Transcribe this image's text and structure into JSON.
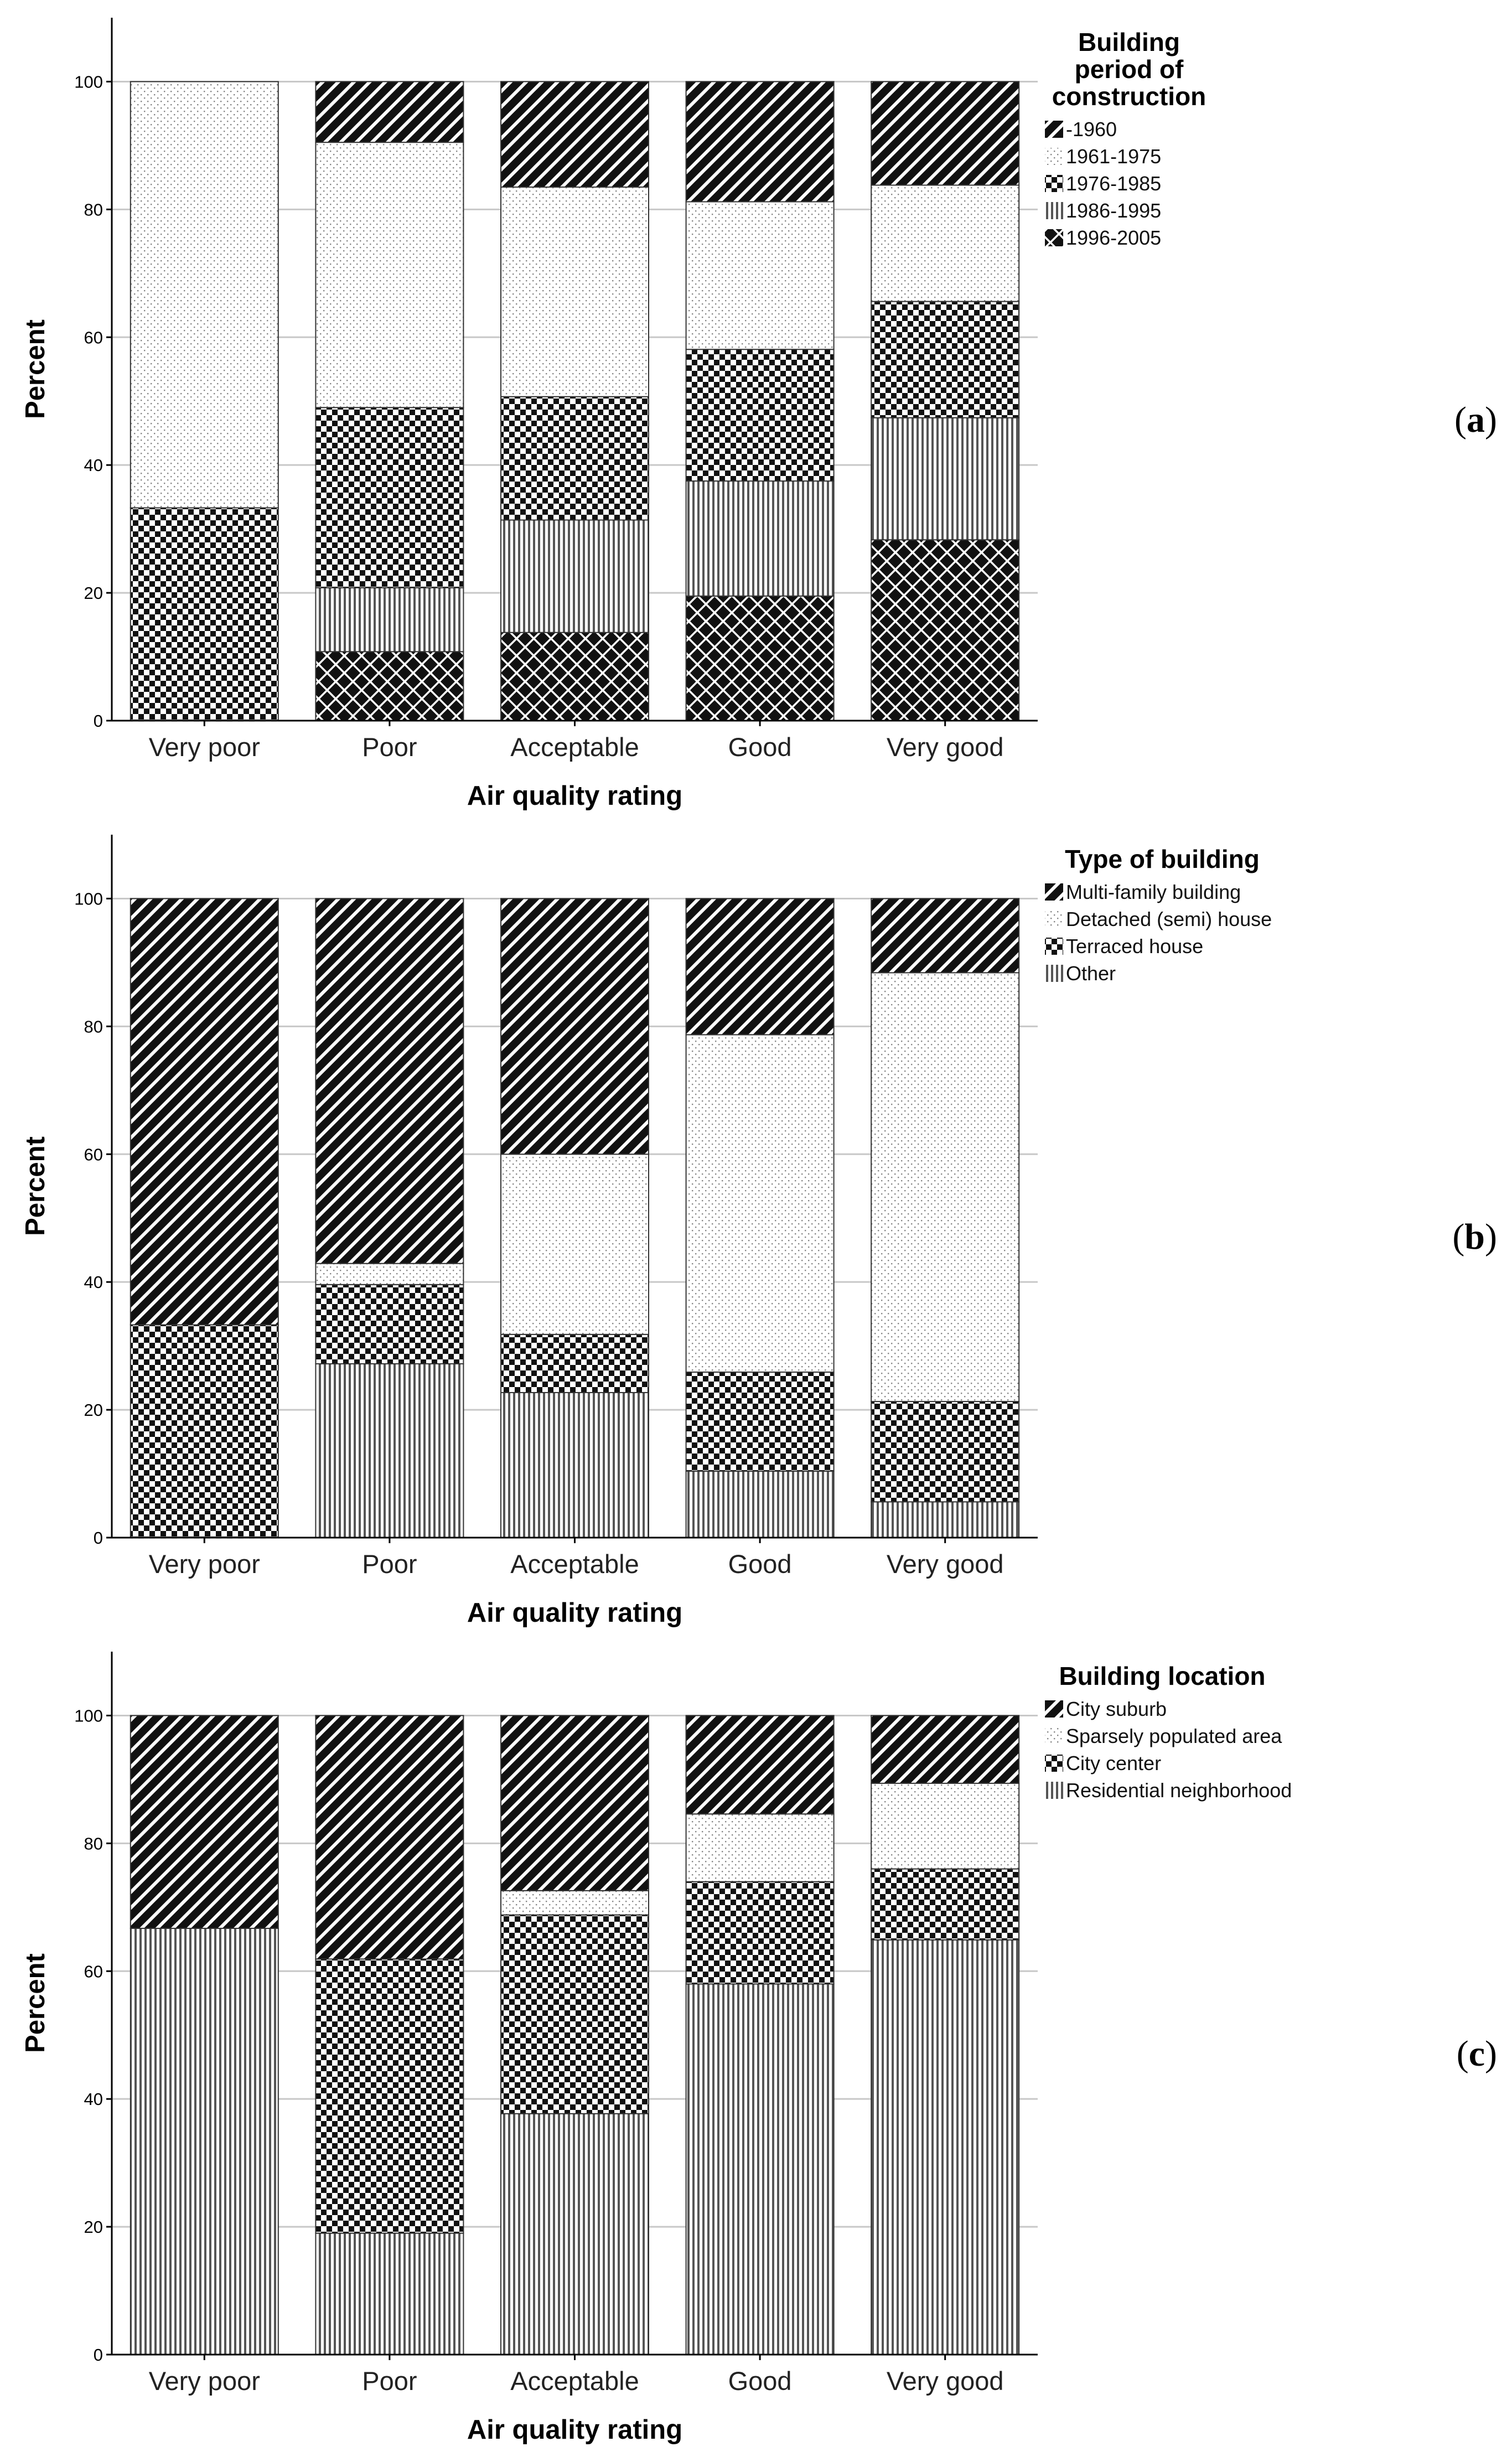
{
  "patterns": [
    "diag",
    "dots",
    "checker",
    "vlines",
    "crosshatch"
  ],
  "chart_data": [
    {
      "type": "bar",
      "stacked": true,
      "panel_label": "a",
      "categories": [
        "Very poor",
        "Poor",
        "Acceptable",
        "Good",
        "Very good"
      ],
      "xlabel": "Air quality rating",
      "ylabel": "Percent",
      "ylim": [
        0,
        110
      ],
      "yticks": [
        0,
        20,
        40,
        60,
        80,
        100
      ],
      "legend_title": "Building period of construction",
      "legend_title_lines": [
        "Building",
        "period of",
        "construction"
      ],
      "series": [
        {
          "name": "-1960",
          "pattern": "diag",
          "values": [
            0,
            9.5,
            16.5,
            18.8,
            16.2
          ]
        },
        {
          "name": "1961-1975",
          "pattern": "dots",
          "values": [
            66.7,
            41.5,
            32.8,
            23.1,
            18.2
          ]
        },
        {
          "name": "1976-1985",
          "pattern": "checker",
          "values": [
            33.3,
            28.2,
            19.3,
            20.6,
            18.2
          ]
        },
        {
          "name": "1986-1995",
          "pattern": "vlines",
          "values": [
            0,
            10.0,
            17.6,
            18.0,
            19.1
          ]
        },
        {
          "name": "1996-2005",
          "pattern": "crosshatch",
          "values": [
            0,
            10.8,
            13.8,
            19.5,
            28.3
          ]
        }
      ]
    },
    {
      "type": "bar",
      "stacked": true,
      "panel_label": "b",
      "categories": [
        "Very poor",
        "Poor",
        "Acceptable",
        "Good",
        "Very good"
      ],
      "xlabel": "Air quality rating",
      "ylabel": "Percent",
      "ylim": [
        0,
        110
      ],
      "yticks": [
        0,
        20,
        40,
        60,
        80,
        100
      ],
      "legend_title": "Type of building",
      "legend_title_lines": [
        "Type of building"
      ],
      "series": [
        {
          "name": "Multi-family building",
          "pattern": "diag",
          "values": [
            66.7,
            57.1,
            40.0,
            21.3,
            11.6
          ]
        },
        {
          "name": "Detached (semi) house",
          "pattern": "dots",
          "values": [
            0,
            3.3,
            28.2,
            52.8,
            67.1
          ]
        },
        {
          "name": "Terraced house",
          "pattern": "checker",
          "values": [
            33.3,
            12.4,
            9.1,
            15.5,
            15.7
          ]
        },
        {
          "name": "Other",
          "pattern": "vlines",
          "values": [
            0,
            27.2,
            22.7,
            10.4,
            5.6
          ]
        }
      ]
    },
    {
      "type": "bar",
      "stacked": true,
      "panel_label": "c",
      "categories": [
        "Very poor",
        "Poor",
        "Acceptable",
        "Good",
        "Very good"
      ],
      "xlabel": "Air quality rating",
      "ylabel": "Percent",
      "ylim": [
        0,
        110
      ],
      "yticks": [
        0,
        20,
        40,
        60,
        80,
        100
      ],
      "legend_title": "Building location",
      "legend_title_lines": [
        "Building location"
      ],
      "series": [
        {
          "name": "City suburb",
          "pattern": "diag",
          "values": [
            33.3,
            38.1,
            27.4,
            15.4,
            10.6
          ]
        },
        {
          "name": "Sparsely populated area",
          "pattern": "dots",
          "values": [
            0,
            0,
            3.8,
            10.6,
            13.4
          ]
        },
        {
          "name": "City center",
          "pattern": "checker",
          "values": [
            0,
            42.9,
            31.1,
            16.0,
            11.1
          ]
        },
        {
          "name": "Residential neighborhood",
          "pattern": "vlines",
          "values": [
            66.7,
            19.0,
            37.7,
            58.0,
            64.9
          ]
        }
      ]
    }
  ]
}
